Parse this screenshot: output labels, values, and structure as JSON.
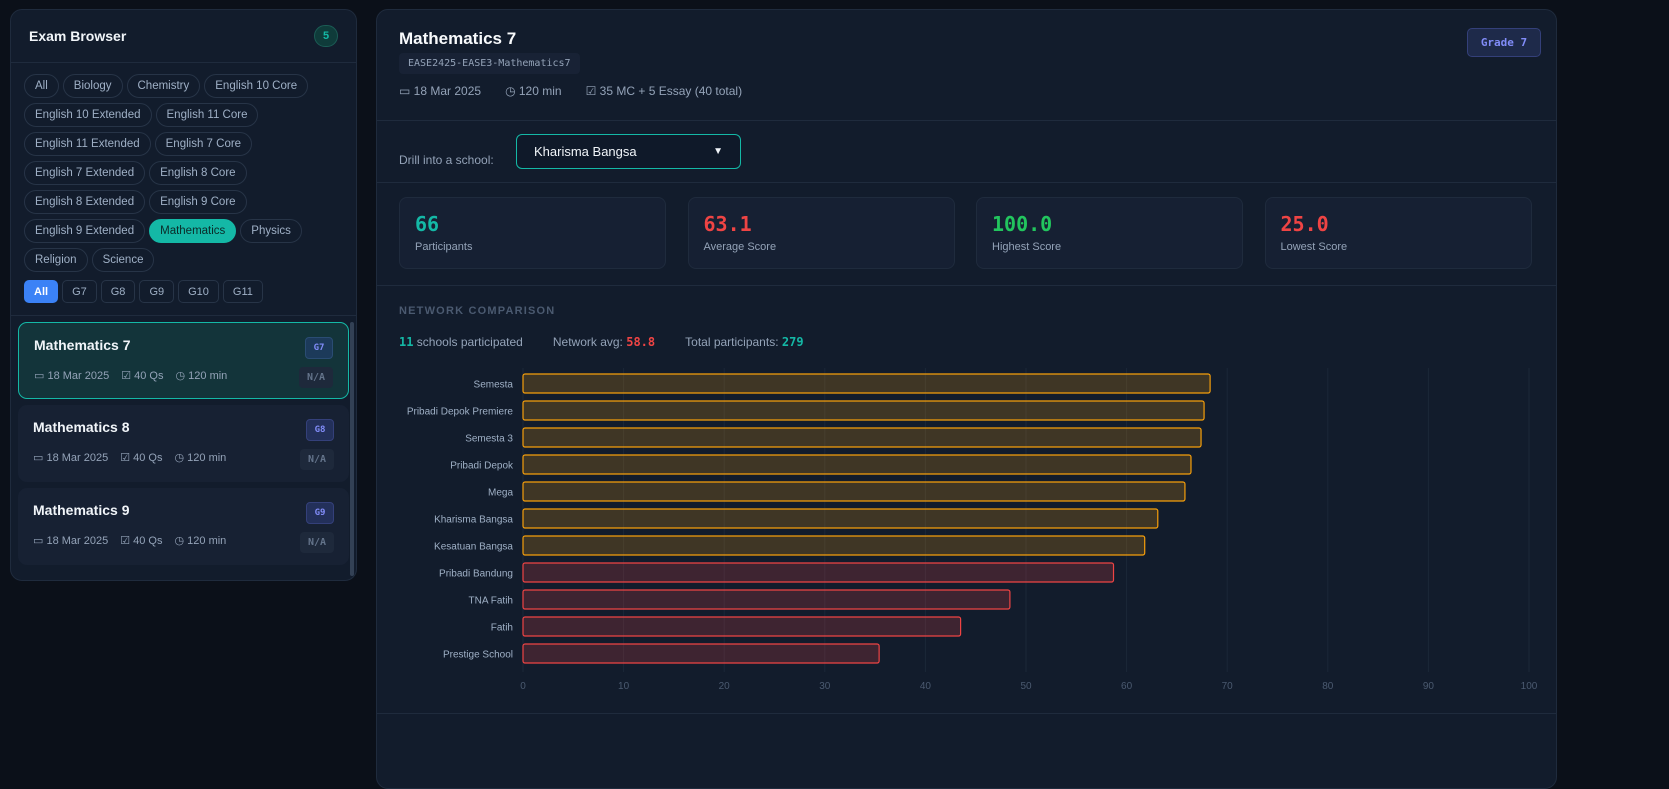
{
  "sidebar": {
    "title": "Exam Browser",
    "count": "5",
    "subjects": [
      "All",
      "Biology",
      "Chemistry",
      "English 10 Core",
      "English 10 Extended",
      "English 11 Core",
      "English 11 Extended",
      "English 7 Core",
      "English 7 Extended",
      "English 8 Core",
      "English 8 Extended",
      "English 9 Core",
      "English 9 Extended",
      "Mathematics",
      "Physics",
      "Religion",
      "Science"
    ],
    "active_subject": "Mathematics",
    "grades": [
      "All",
      "G7",
      "G8",
      "G9",
      "G10",
      "G11"
    ],
    "active_grade": "All",
    "exams": [
      {
        "name": "Mathematics 7",
        "date": "18 Mar 2025",
        "questions": "40 Qs",
        "duration": "120 min",
        "grade": "G7",
        "score": "N/A",
        "selected": true
      },
      {
        "name": "Mathematics 8",
        "date": "18 Mar 2025",
        "questions": "40 Qs",
        "duration": "120 min",
        "grade": "G8",
        "score": "N/A"
      },
      {
        "name": "Mathematics 9",
        "date": "18 Mar 2025",
        "questions": "40 Qs",
        "duration": "120 min",
        "grade": "G9",
        "score": "N/A"
      }
    ]
  },
  "main": {
    "title": "Mathematics 7",
    "code": "EASE2425-EASE3-Mathematics7",
    "date": "18 Mar 2025",
    "duration": "120 min",
    "questions": "35 MC + 5 Essay (40 total)",
    "grade": "Grade 7",
    "drill_label": "Drill into a school:",
    "drill_value": "Kharisma Bangsa",
    "stats": [
      {
        "value": "66",
        "label": "Participants",
        "color": "#14b8a6"
      },
      {
        "value": "63.1",
        "label": "Average Score",
        "color": "#ef4444"
      },
      {
        "value": "100.0",
        "label": "Highest Score",
        "color": "#22c55e"
      },
      {
        "value": "25.0",
        "label": "Lowest Score",
        "color": "#ef4444"
      }
    ],
    "section_title": "NETWORK COMPARISON",
    "schools_count": "11",
    "schools_text": "schools participated",
    "network_avg_label": "Network avg:",
    "network_avg": "58.8",
    "total_label": "Total participants:",
    "total": "279"
  },
  "chart_data": {
    "type": "bar",
    "orientation": "horizontal",
    "xlim": [
      0,
      100
    ],
    "grid": true,
    "ticks": [
      "0",
      "10",
      "20",
      "30",
      "40",
      "50",
      "60",
      "70",
      "80",
      "90",
      "100"
    ],
    "categories": [
      "Semesta",
      "Pribadi Depok Premiere",
      "Semesta 3",
      "Pribadi Depok",
      "Mega",
      "Kharisma Bangsa",
      "Kesatuan Bangsa",
      "Pribadi Bandung",
      "TNA Fatih",
      "Fatih",
      "Prestige School"
    ],
    "values": [
      68.3,
      67.7,
      67.4,
      66.4,
      65.8,
      63.1,
      61.8,
      58.7,
      48.4,
      43.5,
      35.4
    ],
    "colors": {
      "above_avg": "#f59e0b",
      "below_avg": "#ef4444"
    }
  }
}
